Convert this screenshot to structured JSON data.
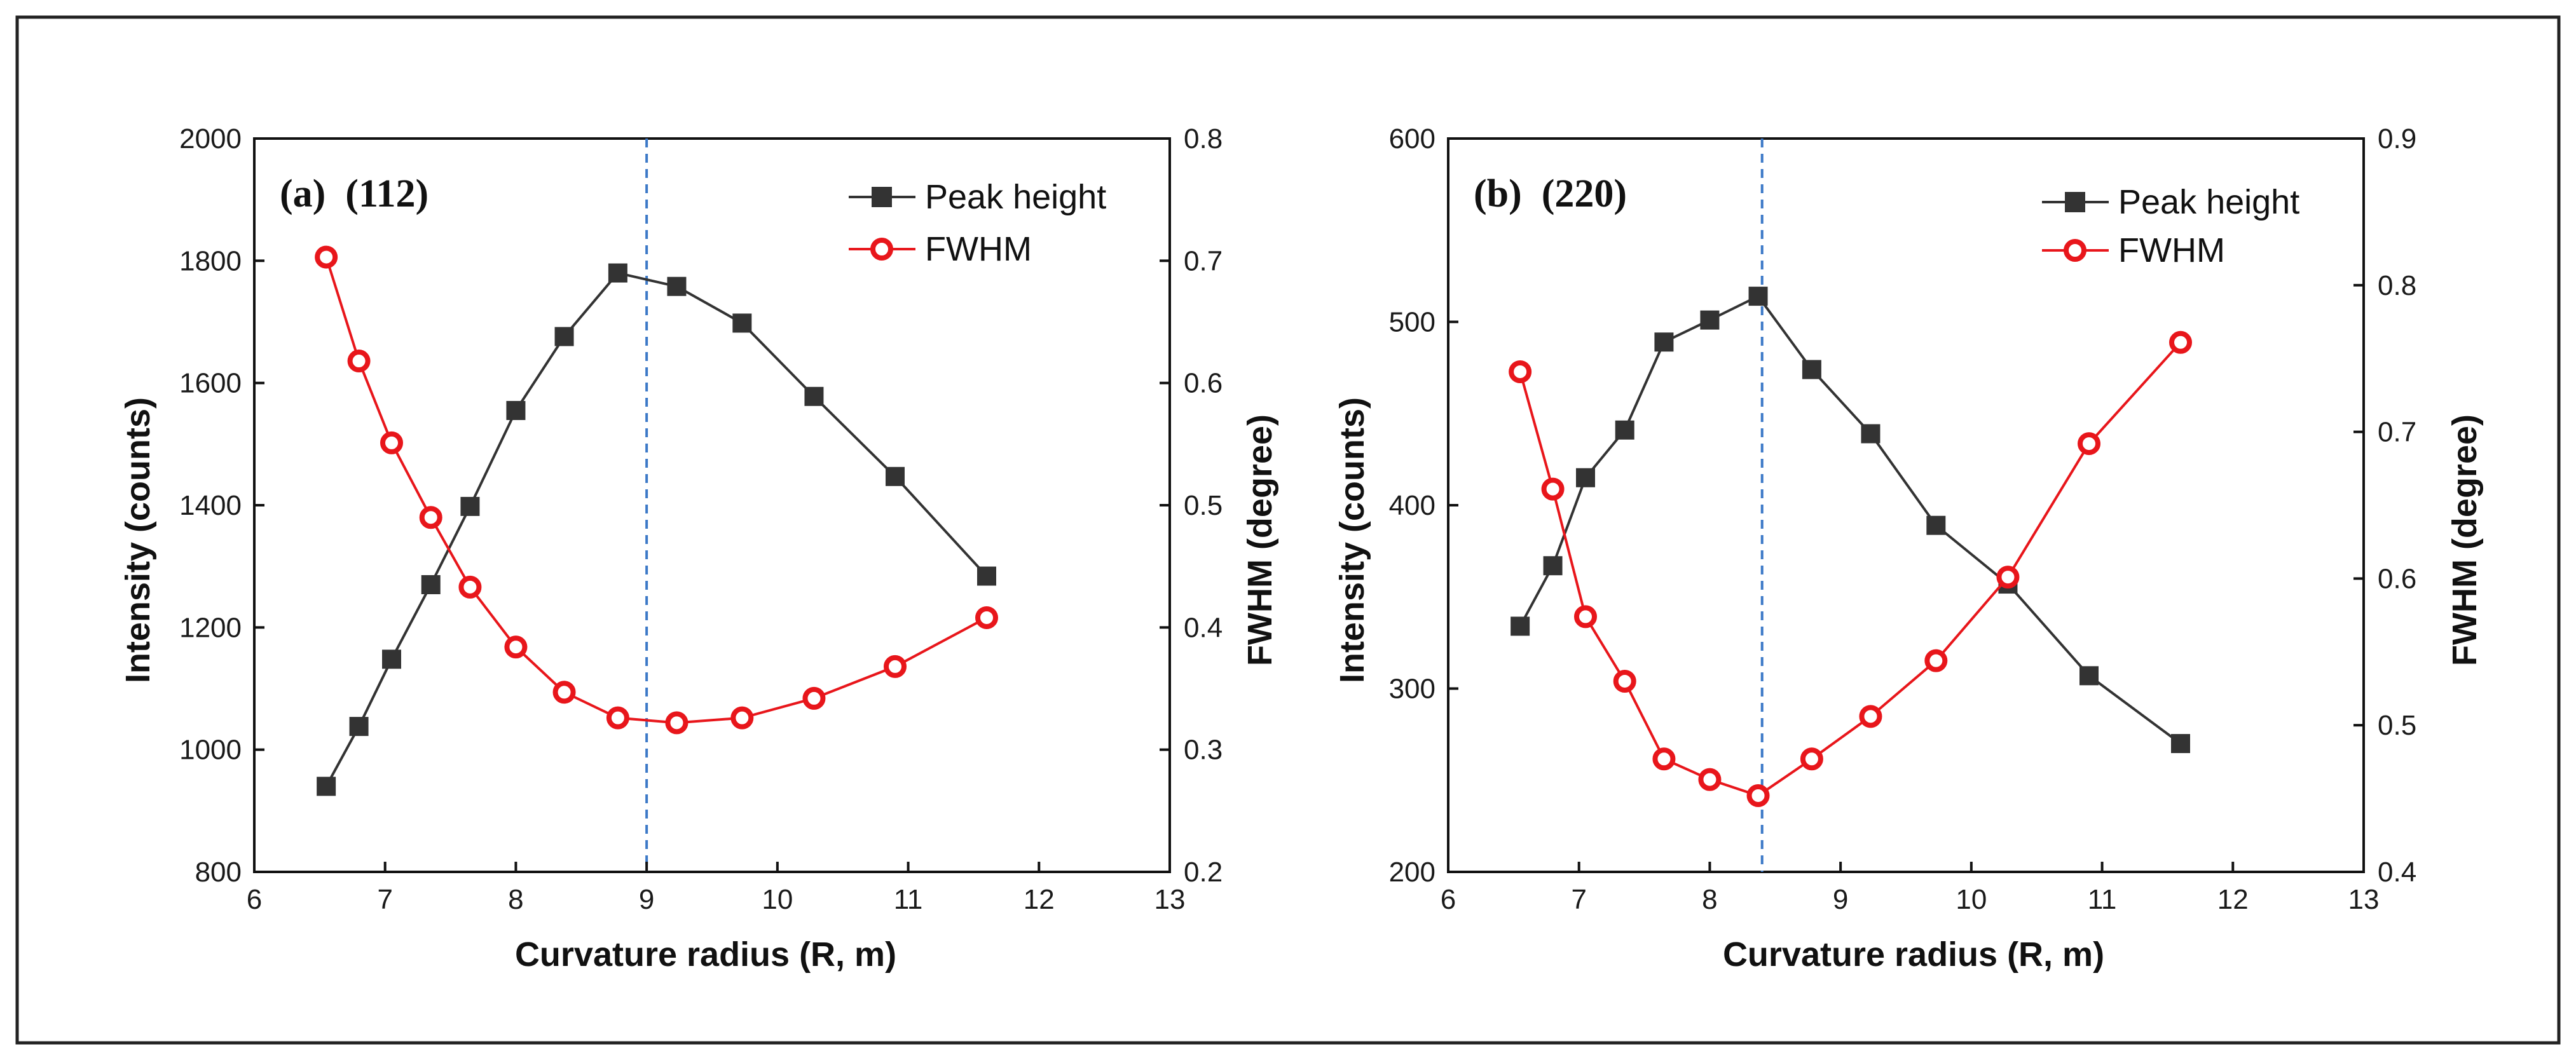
{
  "chart_data": [
    {
      "type": "line",
      "title": "(a)  (112)",
      "xlabel": "Curvature radius (R, m)",
      "ylabel": "Intensity (counts)",
      "y2label": "FWHM (degree)",
      "xlim": [
        6,
        13
      ],
      "ylim": [
        800,
        2000
      ],
      "y2lim": [
        0.2,
        0.8
      ],
      "xticks": [
        6,
        7,
        8,
        9,
        10,
        11,
        12,
        13
      ],
      "yticks": [
        800,
        1000,
        1200,
        1400,
        1600,
        1800,
        2000
      ],
      "y2ticks": [
        "0.2",
        "0.3",
        "0.4",
        "0.5",
        "0.6",
        "0.7",
        "0.8"
      ],
      "reference_line_x": 9.0,
      "legend_position": "top-right",
      "series": [
        {
          "name": "Peak height",
          "axis": "left",
          "color": "#333333",
          "marker": "square",
          "x": [
            6.55,
            6.8,
            7.05,
            7.35,
            7.65,
            8.0,
            8.37,
            8.78,
            9.23,
            9.73,
            10.28,
            10.9,
            11.6
          ],
          "values": [
            940,
            1038,
            1148,
            1270,
            1398,
            1555,
            1676,
            1780,
            1758,
            1698,
            1578,
            1447,
            1284
          ]
        },
        {
          "name": "FWHM",
          "axis": "right",
          "color": "#e8161b",
          "marker": "open-circle",
          "x": [
            6.55,
            6.8,
            7.05,
            7.35,
            7.65,
            8.0,
            8.37,
            8.78,
            9.23,
            9.73,
            10.28,
            10.9,
            11.6
          ],
          "values": [
            0.703,
            0.618,
            0.551,
            0.49,
            0.433,
            0.384,
            0.347,
            0.326,
            0.322,
            0.326,
            0.342,
            0.368,
            0.408
          ]
        }
      ]
    },
    {
      "type": "line",
      "title": "(b)  (220)",
      "xlabel": "Curvature radius (R, m)",
      "ylabel": "Intensity (counts)",
      "y2label": "FWHM (degree)",
      "xlim": [
        6,
        13
      ],
      "ylim": [
        200,
        600
      ],
      "y2lim": [
        0.4,
        0.9
      ],
      "xticks": [
        6,
        7,
        8,
        9,
        10,
        11,
        12,
        13
      ],
      "yticks": [
        200,
        300,
        400,
        500,
        600
      ],
      "y2ticks": [
        "0.4",
        "0.5",
        "0.6",
        "0.7",
        "0.8",
        "0.9"
      ],
      "reference_line_x": 8.4,
      "legend_position": "top-right",
      "series": [
        {
          "name": "Peak height",
          "axis": "left",
          "color": "#333333",
          "marker": "square",
          "x": [
            6.55,
            6.8,
            7.05,
            7.35,
            7.65,
            8.0,
            8.37,
            8.78,
            9.23,
            9.73,
            10.28,
            10.9,
            11.6
          ],
          "values": [
            334,
            367,
            415,
            441,
            489,
            501,
            514,
            474,
            439,
            389,
            357,
            307,
            270
          ]
        },
        {
          "name": "FWHM",
          "axis": "right",
          "color": "#e8161b",
          "marker": "open-circle",
          "x": [
            6.55,
            6.8,
            7.05,
            7.35,
            7.65,
            8.0,
            8.37,
            8.78,
            9.23,
            9.73,
            10.28,
            10.9,
            11.6
          ],
          "values": [
            0.741,
            0.661,
            0.574,
            0.53,
            0.477,
            0.463,
            0.452,
            0.477,
            0.506,
            0.544,
            0.601,
            0.692,
            0.761
          ]
        }
      ]
    }
  ]
}
